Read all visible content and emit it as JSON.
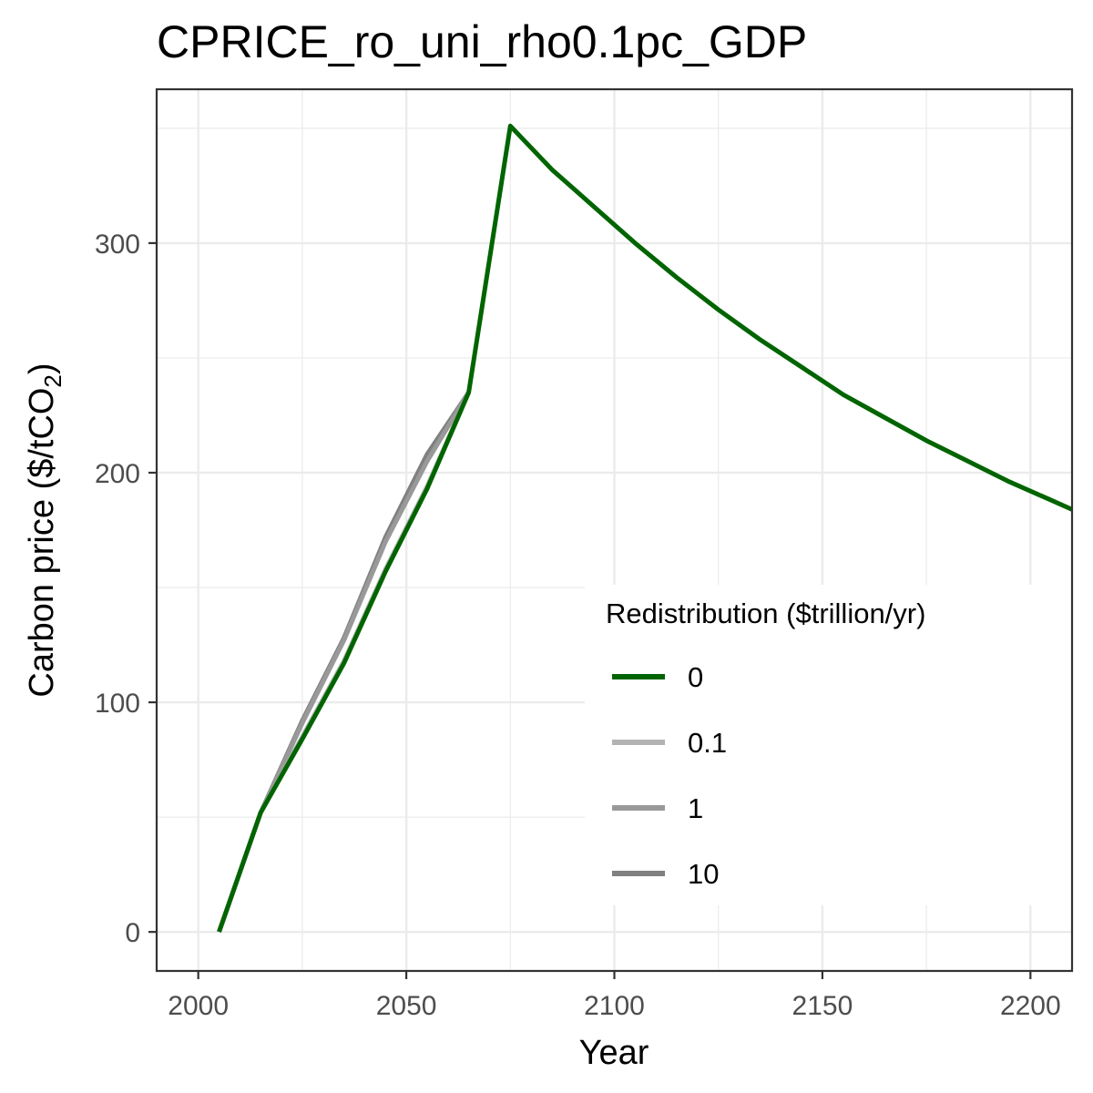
{
  "chart_data": {
    "type": "line",
    "title": "CPRICE_ro_uni_rho0.1pc_GDP",
    "xlabel": "Year",
    "ylabel_main": "Carbon price ($/tCO",
    "ylabel_sub": "2",
    "ylabel_end": ")",
    "xlim": [
      1990,
      2210
    ],
    "ylim": [
      -17,
      367
    ],
    "x_ticks": [
      2000,
      2050,
      2100,
      2150,
      2200
    ],
    "x_tick_labels": [
      "2000",
      "2050",
      "2100",
      "2150",
      "2200"
    ],
    "y_ticks": [
      0,
      100,
      200,
      300
    ],
    "y_tick_labels": [
      "0",
      "100",
      "200",
      "300"
    ],
    "grid": true,
    "legend": {
      "title": "Redistribution ($trillion/yr)",
      "placement": "bottom-right"
    },
    "series": [
      {
        "name": "10",
        "color": "#808080",
        "x": [
          2005,
          2015,
          2025,
          2035,
          2045,
          2055,
          2065
        ],
        "y": [
          0,
          52,
          92,
          128,
          172,
          208,
          235
        ]
      },
      {
        "name": "1",
        "color": "#999999",
        "x": [
          2005,
          2015,
          2025,
          2035,
          2045,
          2055,
          2065
        ],
        "y": [
          0,
          52,
          91,
          127,
          170,
          205,
          235
        ]
      },
      {
        "name": "0.1",
        "color": "#b3b3b3",
        "x": [
          2005,
          2015,
          2025,
          2035,
          2045,
          2055,
          2065
        ],
        "y": [
          0,
          52,
          85,
          118,
          158,
          194,
          235
        ]
      },
      {
        "name": "0",
        "color": "#006400",
        "x": [
          2005,
          2015,
          2025,
          2035,
          2045,
          2055,
          2065,
          2075,
          2085,
          2095,
          2105,
          2115,
          2125,
          2135,
          2145,
          2155,
          2165,
          2175,
          2185,
          2195,
          2205,
          2210
        ],
        "y": [
          0,
          52,
          84,
          117,
          157,
          193,
          235,
          351,
          332,
          316,
          300,
          285,
          271,
          258,
          246,
          234,
          224,
          214,
          205,
          196,
          188,
          184
        ]
      }
    ],
    "legend_order": [
      "0",
      "0.1",
      "1",
      "10"
    ]
  }
}
